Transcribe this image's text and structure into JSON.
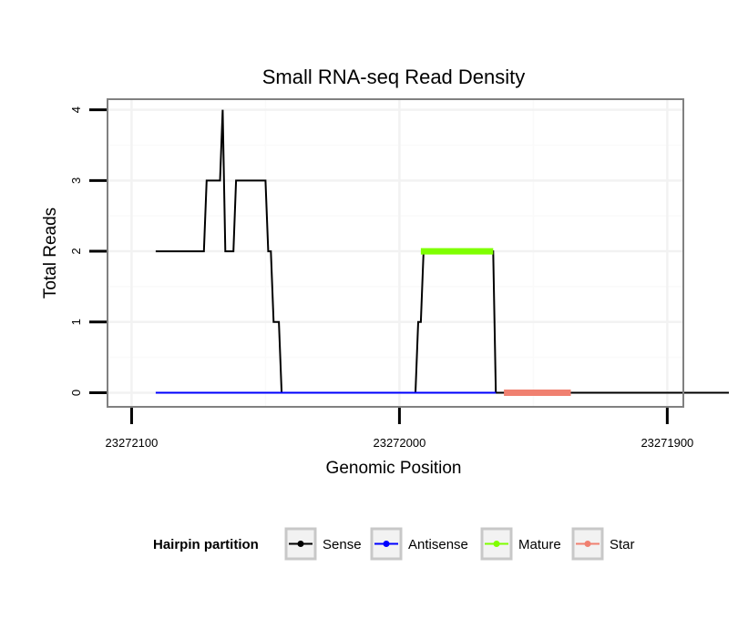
{
  "chart_data": {
    "type": "line",
    "title": "Small RNA-seq Read Density",
    "xlabel": "Genomic Position",
    "ylabel": "Total Reads",
    "xlim": [
      23272109,
      23271894
    ],
    "ylim": [
      -0.2,
      4.15
    ],
    "x_reversed": true,
    "xticks": [
      23272100,
      23272000,
      23271900
    ],
    "xtick_labels": [
      "23272100",
      "23272000",
      "23271900"
    ],
    "yticks": [
      0,
      1,
      2,
      3,
      4
    ],
    "ytick_labels": [
      "0",
      "1",
      "2",
      "3",
      "4"
    ],
    "grid": true,
    "legend": {
      "title": "Hairpin partition",
      "position": "bottom",
      "entries": [
        "Sense",
        "Antisense",
        "Mature",
        "Star"
      ]
    },
    "series": [
      {
        "name": "Sense",
        "color": "#000000",
        "points": [
          [
            23272091,
            2
          ],
          [
            23272073,
            2
          ],
          [
            23272072,
            3
          ],
          [
            23272067,
            3
          ],
          [
            23272066,
            4
          ],
          [
            23272065,
            2
          ],
          [
            23272062,
            2
          ],
          [
            23272061,
            3
          ],
          [
            23272050,
            3
          ],
          [
            23272049,
            2
          ],
          [
            23272048,
            2
          ],
          [
            23272047,
            1
          ],
          [
            23272045,
            1
          ],
          [
            23272044,
            0
          ],
          [
            23271994,
            0
          ],
          [
            23271993,
            1
          ],
          [
            23271992,
            1
          ],
          [
            23271991,
            2
          ],
          [
            23271965,
            2
          ],
          [
            23271964,
            0
          ],
          [
            23271877,
            0
          ]
        ]
      },
      {
        "name": "Antisense",
        "color": "#0000ff",
        "points": [
          [
            23272091,
            0
          ],
          [
            23271964,
            0
          ]
        ]
      },
      {
        "name": "Mature",
        "color": "#7fff00",
        "points": [
          [
            23271992,
            2
          ],
          [
            23271965,
            2
          ]
        ]
      },
      {
        "name": "Star",
        "color": "#f08070",
        "points": [
          [
            23271961,
            0
          ],
          [
            23271936,
            0
          ]
        ]
      }
    ]
  }
}
